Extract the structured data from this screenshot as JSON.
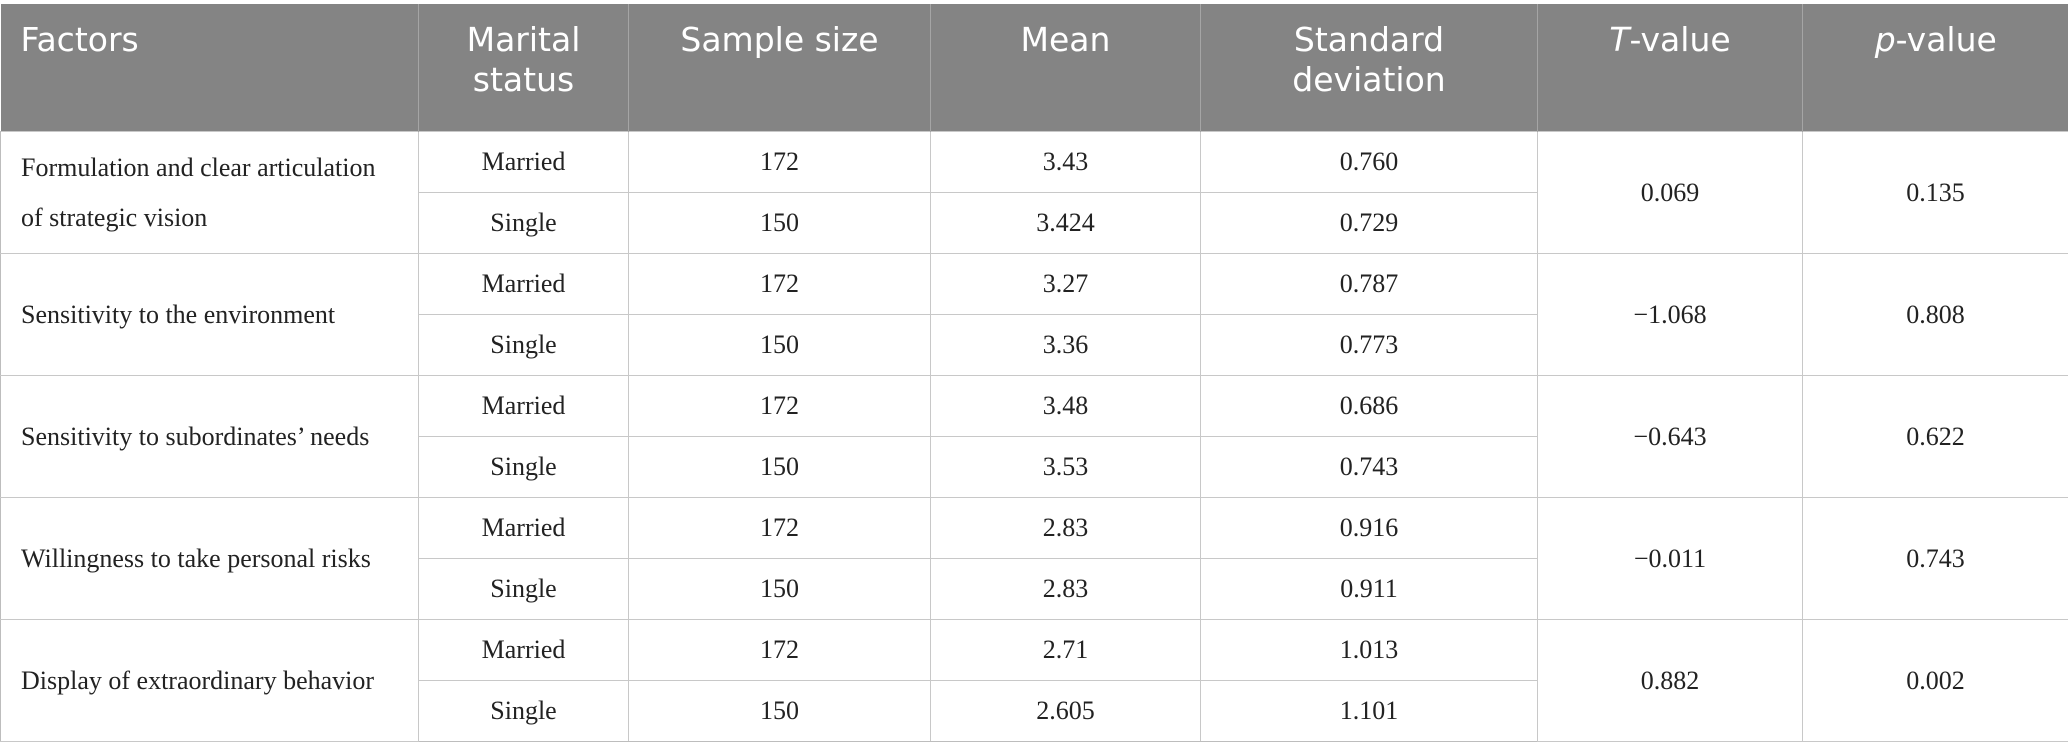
{
  "table": {
    "headers": [
      "Factors",
      "Marital status",
      "Sample size",
      "Mean",
      "Standard deviation",
      "T-value",
      "p-value"
    ],
    "rows": [
      {
        "factor": "Formulation and clear articulation of strategic vision",
        "groups": [
          {
            "status": "Married",
            "n": "172",
            "mean": "3.43",
            "sd": "0.760"
          },
          {
            "status": "Single",
            "n": "150",
            "mean": "3.424",
            "sd": "0.729"
          }
        ],
        "t": "0.069",
        "p": "0.135"
      },
      {
        "factor": "Sensitivity to the environment",
        "groups": [
          {
            "status": "Married",
            "n": "172",
            "mean": "3.27",
            "sd": "0.787"
          },
          {
            "status": "Single",
            "n": "150",
            "mean": "3.36",
            "sd": "0.773"
          }
        ],
        "t": "−1.068",
        "p": "0.808"
      },
      {
        "factor": "Sensitivity to subordinates’ needs",
        "groups": [
          {
            "status": "Married",
            "n": "172",
            "mean": "3.48",
            "sd": "0.686"
          },
          {
            "status": "Single",
            "n": "150",
            "mean": "3.53",
            "sd": "0.743"
          }
        ],
        "t": "−0.643",
        "p": "0.622"
      },
      {
        "factor": "Willingness to take personal risks",
        "groups": [
          {
            "status": "Married",
            "n": "172",
            "mean": "2.83",
            "sd": "0.916"
          },
          {
            "status": "Single",
            "n": "150",
            "mean": "2.83",
            "sd": "0.911"
          }
        ],
        "t": "−0.011",
        "p": "0.743"
      },
      {
        "factor": "Display of extraordinary behavior",
        "groups": [
          {
            "status": "Married",
            "n": "172",
            "mean": "2.71",
            "sd": "1.013"
          },
          {
            "status": "Single",
            "n": "150",
            "mean": "2.605",
            "sd": "1.101"
          }
        ],
        "t": "0.882",
        "p": "0.002"
      }
    ]
  }
}
